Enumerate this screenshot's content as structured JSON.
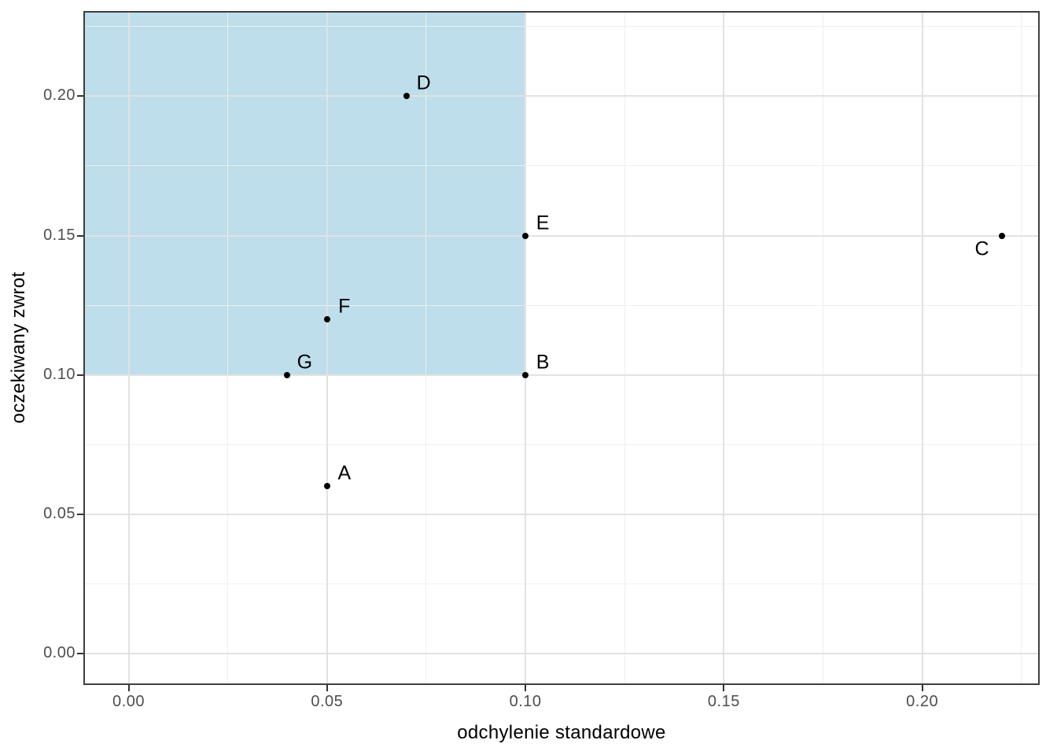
{
  "chart_data": {
    "type": "scatter",
    "title": "",
    "xlabel": "odchylenie standardowe",
    "ylabel": "oczekiwany zwrot",
    "xlim": [
      -0.0114,
      0.2296
    ],
    "ylim": [
      -0.0113,
      0.2306
    ],
    "grid": true,
    "legend": "none",
    "x_ticks": {
      "values": [
        0.0,
        0.05,
        0.1,
        0.15,
        0.2
      ],
      "labels": [
        "0.00",
        "0.05",
        "0.10",
        "0.15",
        "0.20"
      ]
    },
    "y_ticks": {
      "values": [
        0.0,
        0.05,
        0.1,
        0.15,
        0.2
      ],
      "labels": [
        "0.00",
        "0.05",
        "0.10",
        "0.15",
        "0.20"
      ]
    },
    "x_minor_ticks": [
      0.025,
      0.075,
      0.125,
      0.175,
      0.225
    ],
    "y_minor_ticks": [
      0.025,
      0.075,
      0.125,
      0.175,
      0.225
    ],
    "points": [
      {
        "label": "A",
        "x": 0.05,
        "y": 0.06,
        "label_side": "ne"
      },
      {
        "label": "B",
        "x": 0.1,
        "y": 0.1,
        "label_side": "ne"
      },
      {
        "label": "C",
        "x": 0.22,
        "y": 0.15,
        "label_side": "sw"
      },
      {
        "label": "D",
        "x": 0.07,
        "y": 0.2,
        "label_side": "ne"
      },
      {
        "label": "E",
        "x": 0.1,
        "y": 0.15,
        "label_side": "ne"
      },
      {
        "label": "F",
        "x": 0.05,
        "y": 0.12,
        "label_side": "ne"
      },
      {
        "label": "G",
        "x": 0.04,
        "y": 0.1,
        "label_side": "ne"
      }
    ],
    "highlight_region": {
      "x0": null,
      "x1": 0.1,
      "y0": 0.1,
      "y1": null,
      "color": "#BDDEEA"
    },
    "colors": {
      "point": "#000000",
      "region_fill": "#BDDEEA",
      "grid_major": "#E2E2E2",
      "grid_minor": "#EFEFEF",
      "panel_border": "#3F3F3F",
      "tick_label": "#4D4D4D",
      "tick_mark": "#333333",
      "axis_title": "#000000",
      "panel_bg": "#FFFFFF"
    }
  }
}
